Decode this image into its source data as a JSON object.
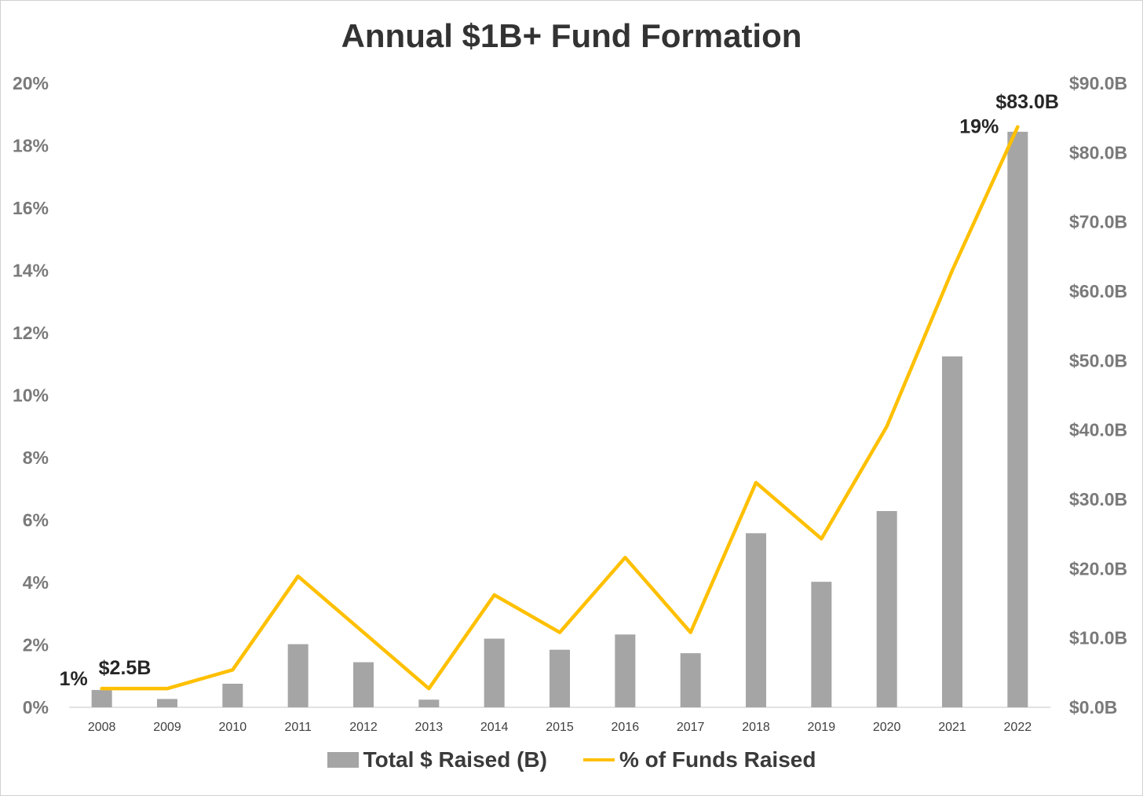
{
  "chart_data": {
    "type": "bar",
    "title": "Annual $1B+ Fund Formation",
    "categories": [
      "2008",
      "2009",
      "2010",
      "2011",
      "2012",
      "2013",
      "2014",
      "2015",
      "2016",
      "2017",
      "2018",
      "2019",
      "2020",
      "2021",
      "2022"
    ],
    "series": [
      {
        "name": "Total $ Raised (B)",
        "type": "bar",
        "axis": "right",
        "color": "#a5a5a5",
        "values": [
          2.5,
          1.2,
          3.4,
          9.1,
          6.5,
          1.1,
          9.9,
          8.3,
          10.5,
          7.8,
          25.1,
          18.1,
          28.3,
          50.6,
          83.0
        ]
      },
      {
        "name": "% of Funds Raised",
        "type": "line",
        "axis": "left",
        "color": "#ffc000",
        "values": [
          0.6,
          0.6,
          1.2,
          4.2,
          2.4,
          0.6,
          3.6,
          2.4,
          4.8,
          2.4,
          7.2,
          5.4,
          9.0,
          14.0,
          18.6
        ]
      }
    ],
    "left_axis": {
      "ylim": [
        0,
        20
      ],
      "ticks": [
        "0%",
        "2%",
        "4%",
        "6%",
        "8%",
        "10%",
        "12%",
        "14%",
        "16%",
        "18%",
        "20%"
      ]
    },
    "right_axis": {
      "ylim": [
        0,
        90
      ],
      "ticks": [
        "$0.0B",
        "$10.0B",
        "$20.0B",
        "$30.0B",
        "$40.0B",
        "$50.0B",
        "$60.0B",
        "$70.0B",
        "$80.0B",
        "$90.0B"
      ]
    },
    "annotations": [
      {
        "text": "1%",
        "series": "% of Funds Raised",
        "category": "2008"
      },
      {
        "text": "$2.5B",
        "series": "Total $ Raised (B)",
        "category": "2008"
      },
      {
        "text": "19%",
        "series": "% of Funds Raised",
        "category": "2022"
      },
      {
        "text": "$83.0B",
        "series": "Total $ Raised (B)",
        "category": "2022"
      }
    ],
    "grid": false,
    "legend_position": "bottom"
  }
}
